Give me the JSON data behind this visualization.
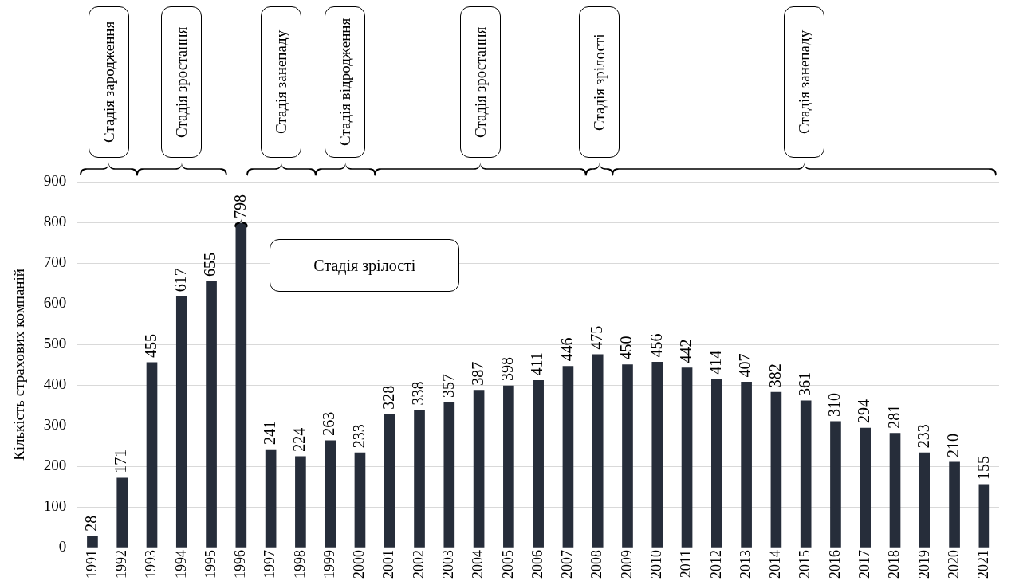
{
  "chart_data": {
    "type": "bar",
    "ylabel": "Кількість страхових компаній",
    "x": [
      1991,
      1992,
      1993,
      1994,
      1995,
      1996,
      1997,
      1998,
      1999,
      2000,
      2001,
      2002,
      2003,
      2004,
      2005,
      2006,
      2007,
      2008,
      2009,
      2010,
      2011,
      2012,
      2013,
      2014,
      2015,
      2016,
      2017,
      2018,
      2019,
      2020,
      2021
    ],
    "values": [
      28,
      171,
      455,
      617,
      655,
      798,
      241,
      224,
      263,
      233,
      328,
      338,
      357,
      387,
      398,
      411,
      446,
      475,
      450,
      456,
      442,
      414,
      407,
      382,
      361,
      310,
      294,
      281,
      233,
      210,
      155
    ],
    "color": "#262d3a",
    "xlim": [
      1990.5,
      2021.5
    ],
    "xticks": [
      1991,
      1992,
      1993,
      1994,
      1995,
      1996,
      1997,
      1998,
      1999,
      2000,
      2001,
      2002,
      2003,
      2004,
      2005,
      2006,
      2007,
      2008,
      2009,
      2010,
      2011,
      2012,
      2013,
      2014,
      2015,
      2016,
      2017,
      2018,
      2019,
      2020,
      2021
    ],
    "ylim": [
      0,
      900
    ],
    "yticks": [
      0,
      100,
      200,
      300,
      400,
      500,
      600,
      700,
      800,
      900
    ],
    "grid": "y",
    "legend": false,
    "data_labels": true,
    "annotations": [
      "Стадія зародження",
      "Стадія зростання",
      "Стадія зрілості",
      "Стадія занепаду",
      "Стадія відродження",
      "Стадія зростання",
      "Стадія зрілості",
      "Стадія занепаду"
    ]
  }
}
